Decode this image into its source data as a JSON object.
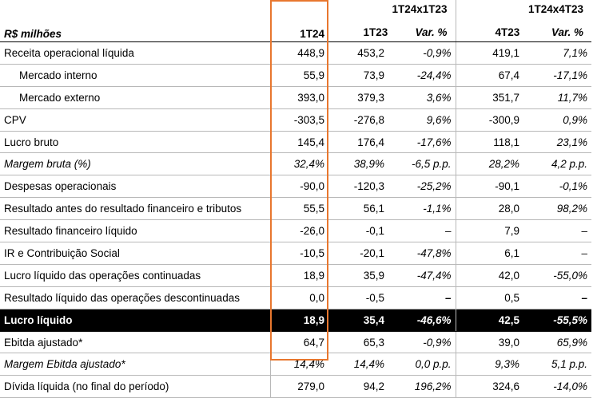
{
  "header": {
    "label": "R$ milhões",
    "col_1t24": "1T24",
    "col_1t23": "1T23",
    "group1_title": "1T24x1T23",
    "group1_var": "Var. %",
    "col_4t23": "4T23",
    "group2_title": "1T24x4T23",
    "group2_var": "Var. %"
  },
  "rows": [
    {
      "label": "Receita operacional líquida",
      "v1t24": "448,9",
      "v1t23": "453,2",
      "var1": "-0,9%",
      "v4t23": "419,1",
      "var2": "7,1%"
    },
    {
      "label": "Mercado interno",
      "v1t24": "55,9",
      "v1t23": "73,9",
      "var1": "-24,4%",
      "v4t23": "67,4",
      "var2": "-17,1%"
    },
    {
      "label": "Mercado externo",
      "v1t24": "393,0",
      "v1t23": "379,3",
      "var1": "3,6%",
      "v4t23": "351,7",
      "var2": "11,7%"
    },
    {
      "label": "CPV",
      "v1t24": "-303,5",
      "v1t23": "-276,8",
      "var1": "9,6%",
      "v4t23": "-300,9",
      "var2": "0,9%"
    },
    {
      "label": "Lucro bruto",
      "v1t24": "145,4",
      "v1t23": "176,4",
      "var1": "-17,6%",
      "v4t23": "118,1",
      "var2": "23,1%"
    },
    {
      "label": "Margem bruta (%)",
      "v1t24": "32,4%",
      "v1t23": "38,9%",
      "var1": "-6,5 p.p.",
      "v4t23": "28,2%",
      "var2": "4,2 p.p."
    },
    {
      "label": "Despesas operacionais",
      "v1t24": "-90,0",
      "v1t23": "-120,3",
      "var1": "-25,2%",
      "v4t23": "-90,1",
      "var2": "-0,1%"
    },
    {
      "label": "Resultado antes do resultado financeiro e tributos",
      "v1t24": "55,5",
      "v1t23": "56,1",
      "var1": "-1,1%",
      "v4t23": "28,0",
      "var2": "98,2%"
    },
    {
      "label": "Resultado financeiro líquido",
      "v1t24": "-26,0",
      "v1t23": "-0,1",
      "var1": "–",
      "v4t23": "7,9",
      "var2": "–"
    },
    {
      "label": "IR e Contribuição Social",
      "v1t24": "-10,5",
      "v1t23": "-20,1",
      "var1": "-47,8%",
      "v4t23": "6,1",
      "var2": "–"
    },
    {
      "label": "Lucro líquido das operações continuadas",
      "v1t24": "18,9",
      "v1t23": "35,9",
      "var1": "-47,4%",
      "v4t23": "42,0",
      "var2": "-55,0%"
    },
    {
      "label": "Resultado líquido das operações descontinuadas",
      "v1t24": "0,0",
      "v1t23": "-0,5",
      "var1": "–",
      "v4t23": "0,5",
      "var2": "–"
    },
    {
      "label": "Lucro líquido",
      "v1t24": "18,9",
      "v1t23": "35,4",
      "var1": "-46,6%",
      "v4t23": "42,5",
      "var2": "-55,5%"
    },
    {
      "label": "Ebitda ajustado*",
      "v1t24": "64,7",
      "v1t23": "65,3",
      "var1": "-0,9%",
      "v4t23": "39,0",
      "var2": "65,9%"
    },
    {
      "label": "Margem Ebitda ajustado*",
      "v1t24": "14,4%",
      "v1t23": "14,4%",
      "var1": "0,0 p.p.",
      "v4t23": "9,3%",
      "var2": "5,1 p.p."
    },
    {
      "label": "Dívida líquida (no final do período)",
      "v1t24": "279,0",
      "v1t23": "94,2",
      "var1": "196,2%",
      "v4t23": "324,6",
      "var2": "-14,0%"
    }
  ],
  "highlight_color": "#e8772e"
}
